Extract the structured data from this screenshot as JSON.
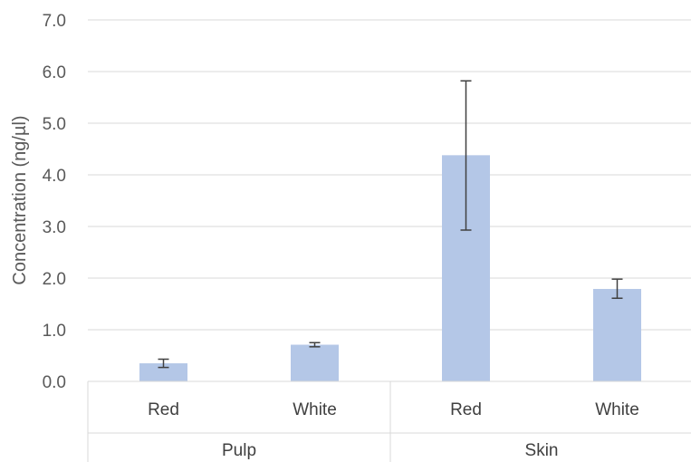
{
  "chart_data": {
    "type": "bar",
    "title": "",
    "xlabel": "",
    "ylabel": "Concentration (ng/µl)",
    "ylim": [
      0,
      7
    ],
    "yticks": [
      "0.0",
      "1.0",
      "2.0",
      "3.0",
      "4.0",
      "5.0",
      "6.0",
      "7.0"
    ],
    "grid": true,
    "groups": [
      {
        "label": "Pulp",
        "categories": [
          "Red",
          "White"
        ]
      },
      {
        "label": "Skin",
        "categories": [
          "Red",
          "White"
        ]
      }
    ],
    "categories": [
      "Red",
      "White",
      "Red",
      "White"
    ],
    "values": [
      0.35,
      0.71,
      4.38,
      1.79
    ],
    "error_low": [
      0.27,
      0.67,
      2.93,
      1.61
    ],
    "error_high": [
      0.43,
      0.75,
      5.82,
      1.98
    ],
    "bar_color": "#b4c7e7",
    "error_color": "#404040",
    "grid_color": "#d9d9d9"
  }
}
